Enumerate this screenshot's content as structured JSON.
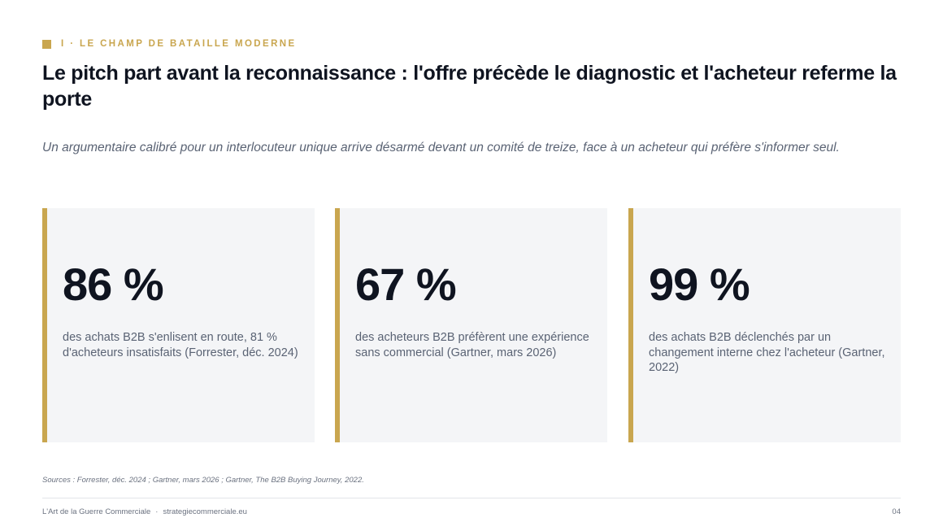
{
  "header": {
    "kicker": "I · LE CHAMP DE BATAILLE MODERNE",
    "title": "Le pitch part avant la reconnaissance : l'offre précède le diagnostic et l'acheteur referme la porte",
    "subtitle": "Un argumentaire calibré pour un interlocuteur unique arrive désarmé devant un comité de treize, face à un acheteur qui préfère s'informer seul."
  },
  "cards": [
    {
      "stat": "86 %",
      "description": "des achats B2B s'enlisent en route, 81 % d'acheteurs insatisfaits (Forrester, déc. 2024)"
    },
    {
      "stat": "67 %",
      "description": "des acheteurs B2B préfèrent une expérience sans commercial (Gartner, mars 2026)"
    },
    {
      "stat": "99 %",
      "description": "des achats B2B déclenchés par un changement interne chez l'acheteur (Gartner, 2022)"
    }
  ],
  "sources": "Sources : Forrester, déc. 2024 ; Gartner, mars 2026 ; Gartner, The B2B Buying Journey, 2022.",
  "footer": {
    "brand": "L'Art de la Guerre Commerciale",
    "separator": "·",
    "website": "strategiecommerciale.eu",
    "page_number": "04"
  },
  "colors": {
    "accent": "#c9a64f",
    "title": "#0f1420",
    "muted_text": "#5a6374",
    "card_background": "#f4f5f7"
  },
  "icons": {
    "kicker_marker": "gold-square-icon"
  }
}
